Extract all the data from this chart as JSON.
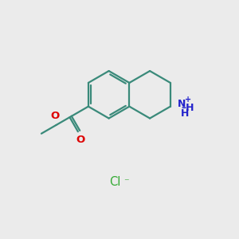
{
  "bg_color": "#ebebeb",
  "bond_color": "#3a8a7a",
  "bond_width": 1.6,
  "o_color": "#dd0000",
  "n_color": "#2222cc",
  "cl_color": "#33aa33",
  "sc": 1.0,
  "ox": 4.55,
  "oy": 6.05,
  "xlim": [
    0,
    10
  ],
  "ylim": [
    0,
    10
  ]
}
